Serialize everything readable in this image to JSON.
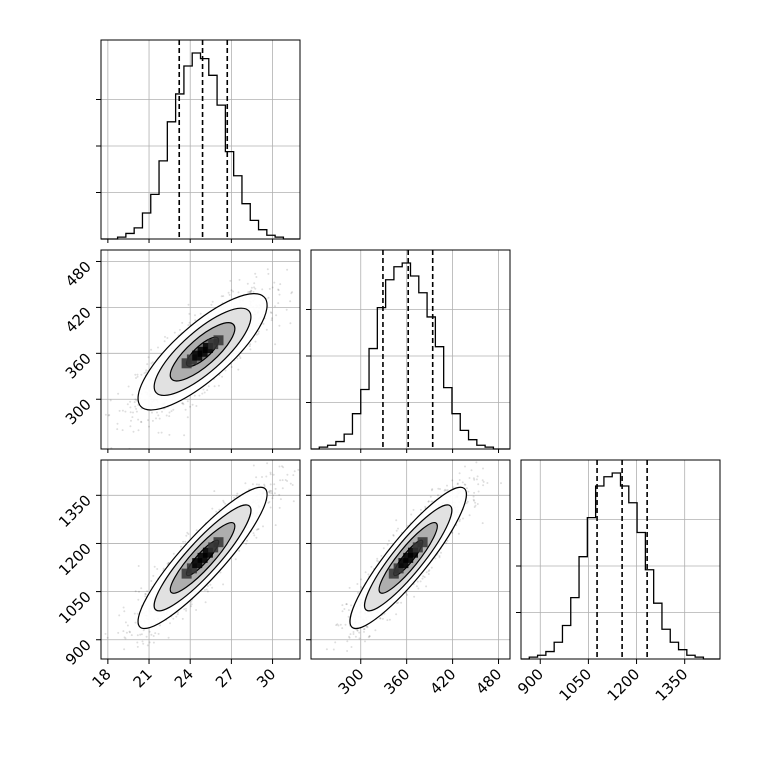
{
  "chart_data": {
    "type": "corner",
    "parameters": [
      {
        "range": [
          17.5,
          32.0
        ],
        "ticks": [
          18,
          21,
          24,
          27,
          30
        ],
        "quantiles": [
          23.2,
          24.9,
          26.7
        ],
        "hist": [
          0,
          0,
          1,
          3,
          6,
          14,
          24,
          42,
          63,
          78,
          93,
          100,
          97,
          88,
          72,
          47,
          34,
          19,
          10,
          5,
          2,
          1,
          0,
          0
        ]
      },
      {
        "range": [
          235,
          495
        ],
        "ticks": [
          300,
          360,
          420,
          480
        ],
        "quantiles": [
          329,
          362,
          394
        ],
        "hist": [
          0,
          1,
          2,
          4,
          8,
          19,
          32,
          54,
          76,
          91,
          98,
          100,
          93,
          84,
          71,
          55,
          33,
          19,
          10,
          5,
          2,
          1,
          0,
          0
        ]
      },
      {
        "range": [
          840,
          1460
        ],
        "ticks": [
          900,
          1050,
          1200,
          1350
        ],
        "quantiles": [
          1077,
          1155,
          1233
        ],
        "hist": [
          0,
          1,
          2,
          4,
          9,
          18,
          33,
          55,
          76,
          93,
          98,
          100,
          93,
          84,
          68,
          48,
          30,
          16,
          9,
          5,
          2,
          1,
          0,
          0
        ]
      }
    ],
    "pairs": [
      {
        "x": 0,
        "y": 1,
        "center": [
          24.9,
          362
        ],
        "sd": [
          2.35,
          38
        ],
        "corr": 0.8
      },
      {
        "x": 0,
        "y": 2,
        "center": [
          24.9,
          1155
        ],
        "sd": [
          2.35,
          110
        ],
        "corr": 0.9
      },
      {
        "x": 1,
        "y": 2,
        "center": [
          362,
          1155
        ],
        "sd": [
          38,
          110
        ],
        "corr": 0.9
      }
    ],
    "contour_levels": [
      0.5,
      1.0,
      1.5,
      2.0
    ],
    "grid": true
  }
}
